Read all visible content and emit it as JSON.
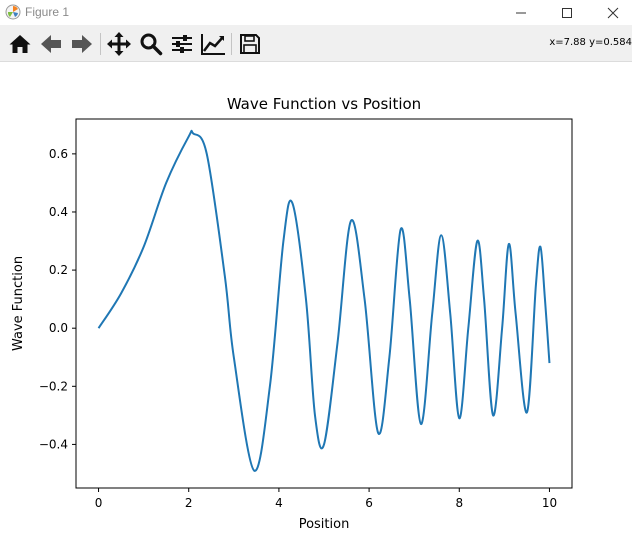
{
  "window": {
    "title": "Figure 1",
    "app_icon": "matplotlib-icon",
    "controls": [
      "minimize-icon",
      "maximize-icon",
      "close-icon"
    ]
  },
  "toolbar": {
    "tools": [
      {
        "name": "home-icon",
        "tooltip": "Reset original view"
      },
      {
        "name": "back-icon",
        "tooltip": "Back to previous view"
      },
      {
        "name": "forward-icon",
        "tooltip": "Forward to next view"
      },
      {
        "name": "pan-icon",
        "tooltip": "Pan axes"
      },
      {
        "name": "zoom-icon",
        "tooltip": "Zoom to rectangle"
      },
      {
        "name": "configure-subplots-icon",
        "tooltip": "Configure subplots"
      },
      {
        "name": "edit-axis-icon",
        "tooltip": "Edit axis, curve and image parameters"
      },
      {
        "name": "save-icon",
        "tooltip": "Save the figure"
      }
    ],
    "coordinates": "x=7.88 y=0.584"
  },
  "chart_data": {
    "type": "line",
    "title": "Wave Function vs Position",
    "xlabel": "Position",
    "ylabel": "Wave Function",
    "xlim": [
      -0.5,
      10.5
    ],
    "ylim": [
      -0.55,
      0.72
    ],
    "xticks": [
      0,
      2,
      4,
      6,
      8,
      10
    ],
    "xtick_labels": [
      "0",
      "2",
      "4",
      "6",
      "8",
      "10"
    ],
    "yticks": [
      -0.4,
      -0.2,
      0.0,
      0.2,
      0.4,
      0.6
    ],
    "ytick_labels": [
      "−0.4",
      "−0.2",
      "0.0",
      "0.2",
      "0.4",
      "0.6"
    ],
    "grid": false,
    "series": [
      {
        "color": "#1f77b4",
        "x": [
          0,
          0.5,
          1.0,
          1.5,
          2.0,
          2.1,
          2.4,
          2.8,
          3.0,
          3.45,
          3.8,
          4.1,
          4.3,
          4.6,
          4.8,
          5.0,
          5.3,
          5.6,
          5.9,
          6.2,
          6.45,
          6.7,
          6.9,
          7.15,
          7.4,
          7.6,
          7.8,
          8.0,
          8.2,
          8.4,
          8.55,
          8.75,
          8.95,
          9.1,
          9.25,
          9.5,
          9.7,
          9.8,
          9.9,
          10.0
        ],
        "y": [
          0.0,
          0.12,
          0.28,
          0.5,
          0.66,
          0.67,
          0.6,
          0.18,
          -0.1,
          -0.49,
          -0.2,
          0.3,
          0.43,
          0.1,
          -0.3,
          -0.4,
          -0.05,
          0.37,
          0.1,
          -0.36,
          -0.1,
          0.34,
          0.1,
          -0.33,
          0.05,
          0.32,
          0.05,
          -0.31,
          0.0,
          0.3,
          0.1,
          -0.3,
          0.0,
          0.29,
          0.05,
          -0.29,
          0.15,
          0.28,
          0.1,
          -0.12
        ]
      }
    ]
  }
}
